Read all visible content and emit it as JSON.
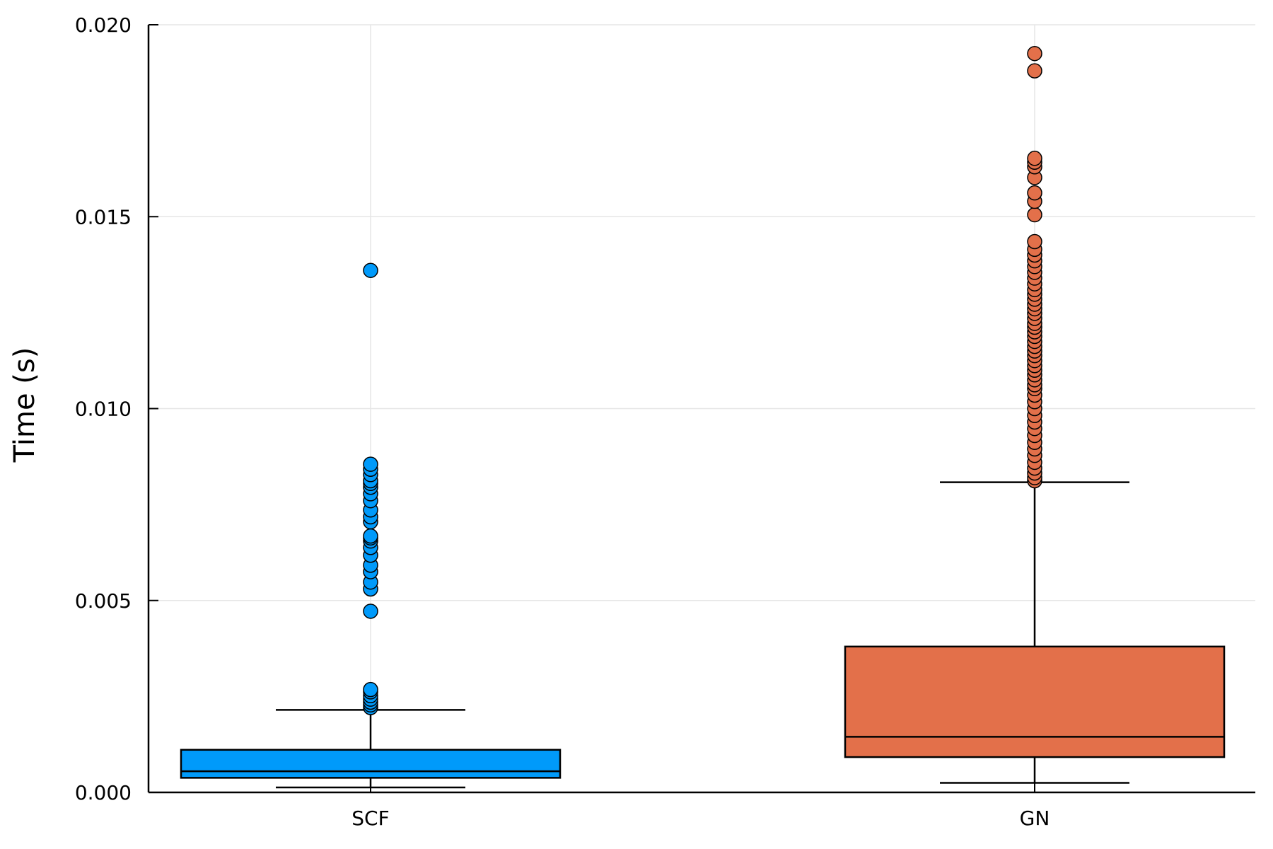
{
  "chart_data": {
    "type": "box",
    "title": "",
    "xlabel": "",
    "ylabel": "Time (s)",
    "ylim": [
      0,
      0.02
    ],
    "yticks": [
      "0.000",
      "0.005",
      "0.010",
      "0.015",
      "0.020"
    ],
    "categories": [
      "SCF",
      "GN"
    ],
    "grid": true,
    "legend": "none",
    "series": [
      {
        "category": "SCF",
        "color": "#009AFA",
        "whisker_low": 0.00013,
        "q1": 0.00038,
        "median": 0.00055,
        "q3": 0.00111,
        "whisker_high": 0.00215,
        "outliers": [
          0.00221,
          0.00228,
          0.00235,
          0.00243,
          0.00252,
          0.00262,
          0.00268,
          0.00472,
          0.0053,
          0.00548,
          0.00575,
          0.00592,
          0.00618,
          0.00638,
          0.00655,
          0.00663,
          0.00668,
          0.00705,
          0.00718,
          0.00736,
          0.0076,
          0.00778,
          0.00795,
          0.00805,
          0.00812,
          0.00828,
          0.00842,
          0.00855,
          0.0136
        ]
      },
      {
        "category": "GN",
        "color": "#E3704A",
        "whisker_low": 0.00025,
        "q1": 0.00092,
        "median": 0.00145,
        "q3": 0.0038,
        "whisker_high": 0.00808,
        "outliers": [
          0.00812,
          0.0082,
          0.00832,
          0.00845,
          0.0086,
          0.00878,
          0.00895,
          0.00912,
          0.0093,
          0.00948,
          0.00965,
          0.00982,
          0.01,
          0.01018,
          0.01035,
          0.01052,
          0.01062,
          0.01075,
          0.01088,
          0.011,
          0.01112,
          0.01125,
          0.01138,
          0.0115,
          0.01162,
          0.01175,
          0.01188,
          0.012,
          0.01212,
          0.01222,
          0.01235,
          0.01248,
          0.0126,
          0.01272,
          0.01285,
          0.01298,
          0.0131,
          0.01325,
          0.0134,
          0.01355,
          0.0137,
          0.01385,
          0.014,
          0.01415,
          0.01435,
          0.01505,
          0.0154,
          0.01562,
          0.01602,
          0.0163,
          0.01642,
          0.01652,
          0.0188,
          0.01925
        ]
      }
    ]
  }
}
